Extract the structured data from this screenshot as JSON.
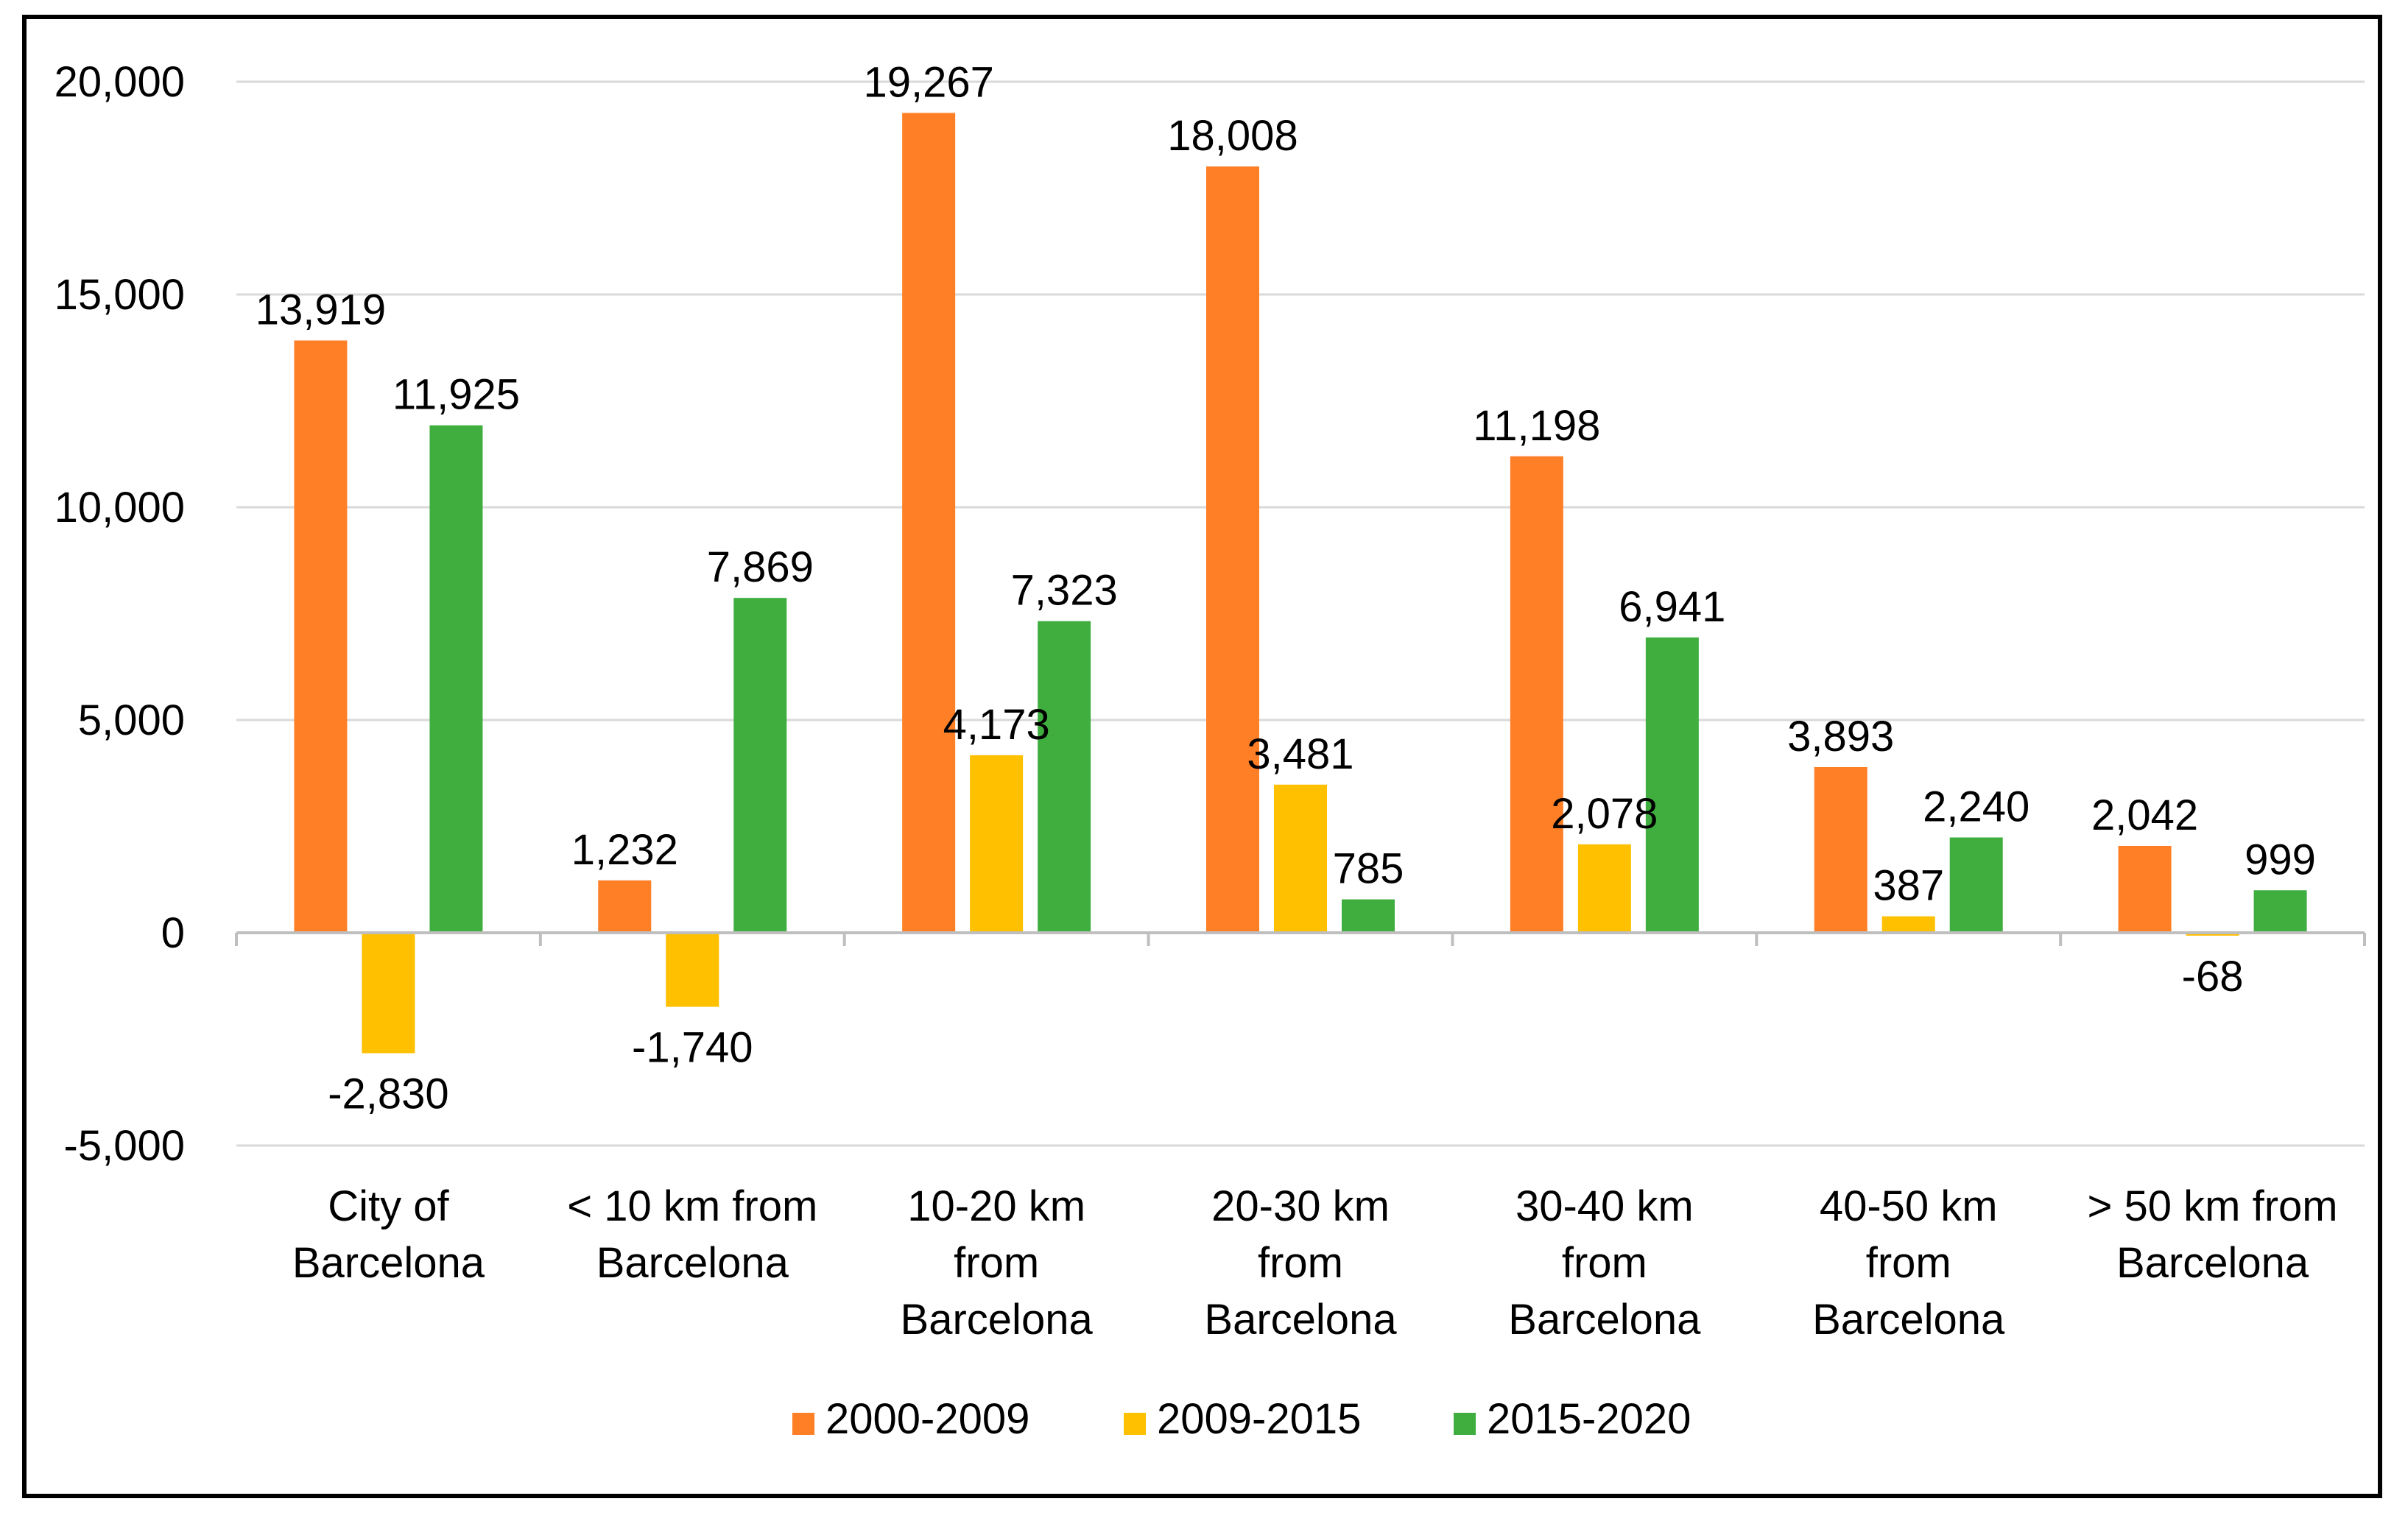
{
  "chart_data": {
    "type": "bar",
    "title": "",
    "xlabel": "",
    "ylabel": "",
    "ylim": [
      -5000,
      20000
    ],
    "yticks": [
      -5000,
      0,
      5000,
      10000,
      15000,
      20000
    ],
    "ytick_labels": [
      "-5,000",
      "0",
      "5,000",
      "10,000",
      "15,000",
      "20,000"
    ],
    "grid": true,
    "legend_position": "bottom",
    "categories": [
      [
        "City of",
        "Barcelona"
      ],
      [
        "< 10 km  from",
        "Barcelona"
      ],
      [
        "10-20 km",
        "from",
        "Barcelona"
      ],
      [
        "20-30 km",
        "from",
        "Barcelona"
      ],
      [
        "30-40 km",
        "from",
        "Barcelona"
      ],
      [
        "40-50 km",
        "from",
        "Barcelona"
      ],
      [
        "> 50 km  from",
        "Barcelona"
      ]
    ],
    "series": [
      {
        "name": "2000-2009",
        "color": "#FF7F27",
        "values": [
          13919,
          1232,
          19267,
          18008,
          11198,
          3893,
          2042
        ],
        "labels": [
          "13,919",
          "1,232",
          "19,267",
          "18,008",
          "11,198",
          "3,893",
          "2,042"
        ]
      },
      {
        "name": "2009-2015",
        "color": "#FFC000",
        "values": [
          -2830,
          -1740,
          4173,
          3481,
          2078,
          387,
          -68
        ],
        "labels": [
          "-2,830",
          "-1,740",
          "4,173",
          "3,481",
          "2,078",
          "387",
          "-68"
        ]
      },
      {
        "name": "2015-2020",
        "color": "#3FAE3F",
        "values": [
          11925,
          7869,
          7323,
          785,
          6941,
          2240,
          999
        ],
        "labels": [
          "11,925",
          "7,869",
          "7,323",
          "785",
          "6,941",
          "2,240",
          "999"
        ]
      }
    ]
  }
}
